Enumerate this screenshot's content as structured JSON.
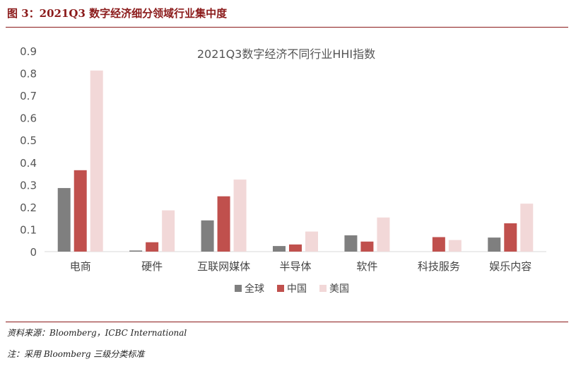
{
  "figure": {
    "title": "图 3：2021Q3 数字经济细分领域行业集中度",
    "source": "资料来源：Bloomberg，ICBC International",
    "note": "注：采用 Bloomberg 三级分类标准"
  },
  "colors": {
    "global": "#7f7f7f",
    "china": "#c0504d",
    "usa": "#f2d8d8",
    "accent": "#8b1a1a"
  },
  "chart_data": {
    "type": "bar",
    "title": "2021Q3数字经济不同行业HHI指数",
    "xlabel": "",
    "ylabel": "",
    "ylim": [
      0,
      0.9
    ],
    "yticks": [
      "0",
      "0.1",
      "0.2",
      "0.3",
      "0.4",
      "0.5",
      "0.6",
      "0.7",
      "0.8",
      "0.9"
    ],
    "categories": [
      "电商",
      "硬件",
      "互联网媒体",
      "半导体",
      "软件",
      "科技服务",
      "娱乐内容"
    ],
    "series": [
      {
        "name": "全球",
        "values": [
          0.285,
          0.005,
          0.14,
          0.025,
          0.073,
          0,
          0.063
        ]
      },
      {
        "name": "中国",
        "values": [
          0.365,
          0.042,
          0.248,
          0.032,
          0.045,
          0.065,
          0.127
        ]
      },
      {
        "name": "美国",
        "values": [
          0.812,
          0.185,
          0.323,
          0.09,
          0.153,
          0.052,
          0.215
        ]
      }
    ],
    "legend_position": "bottom",
    "grid": false
  }
}
